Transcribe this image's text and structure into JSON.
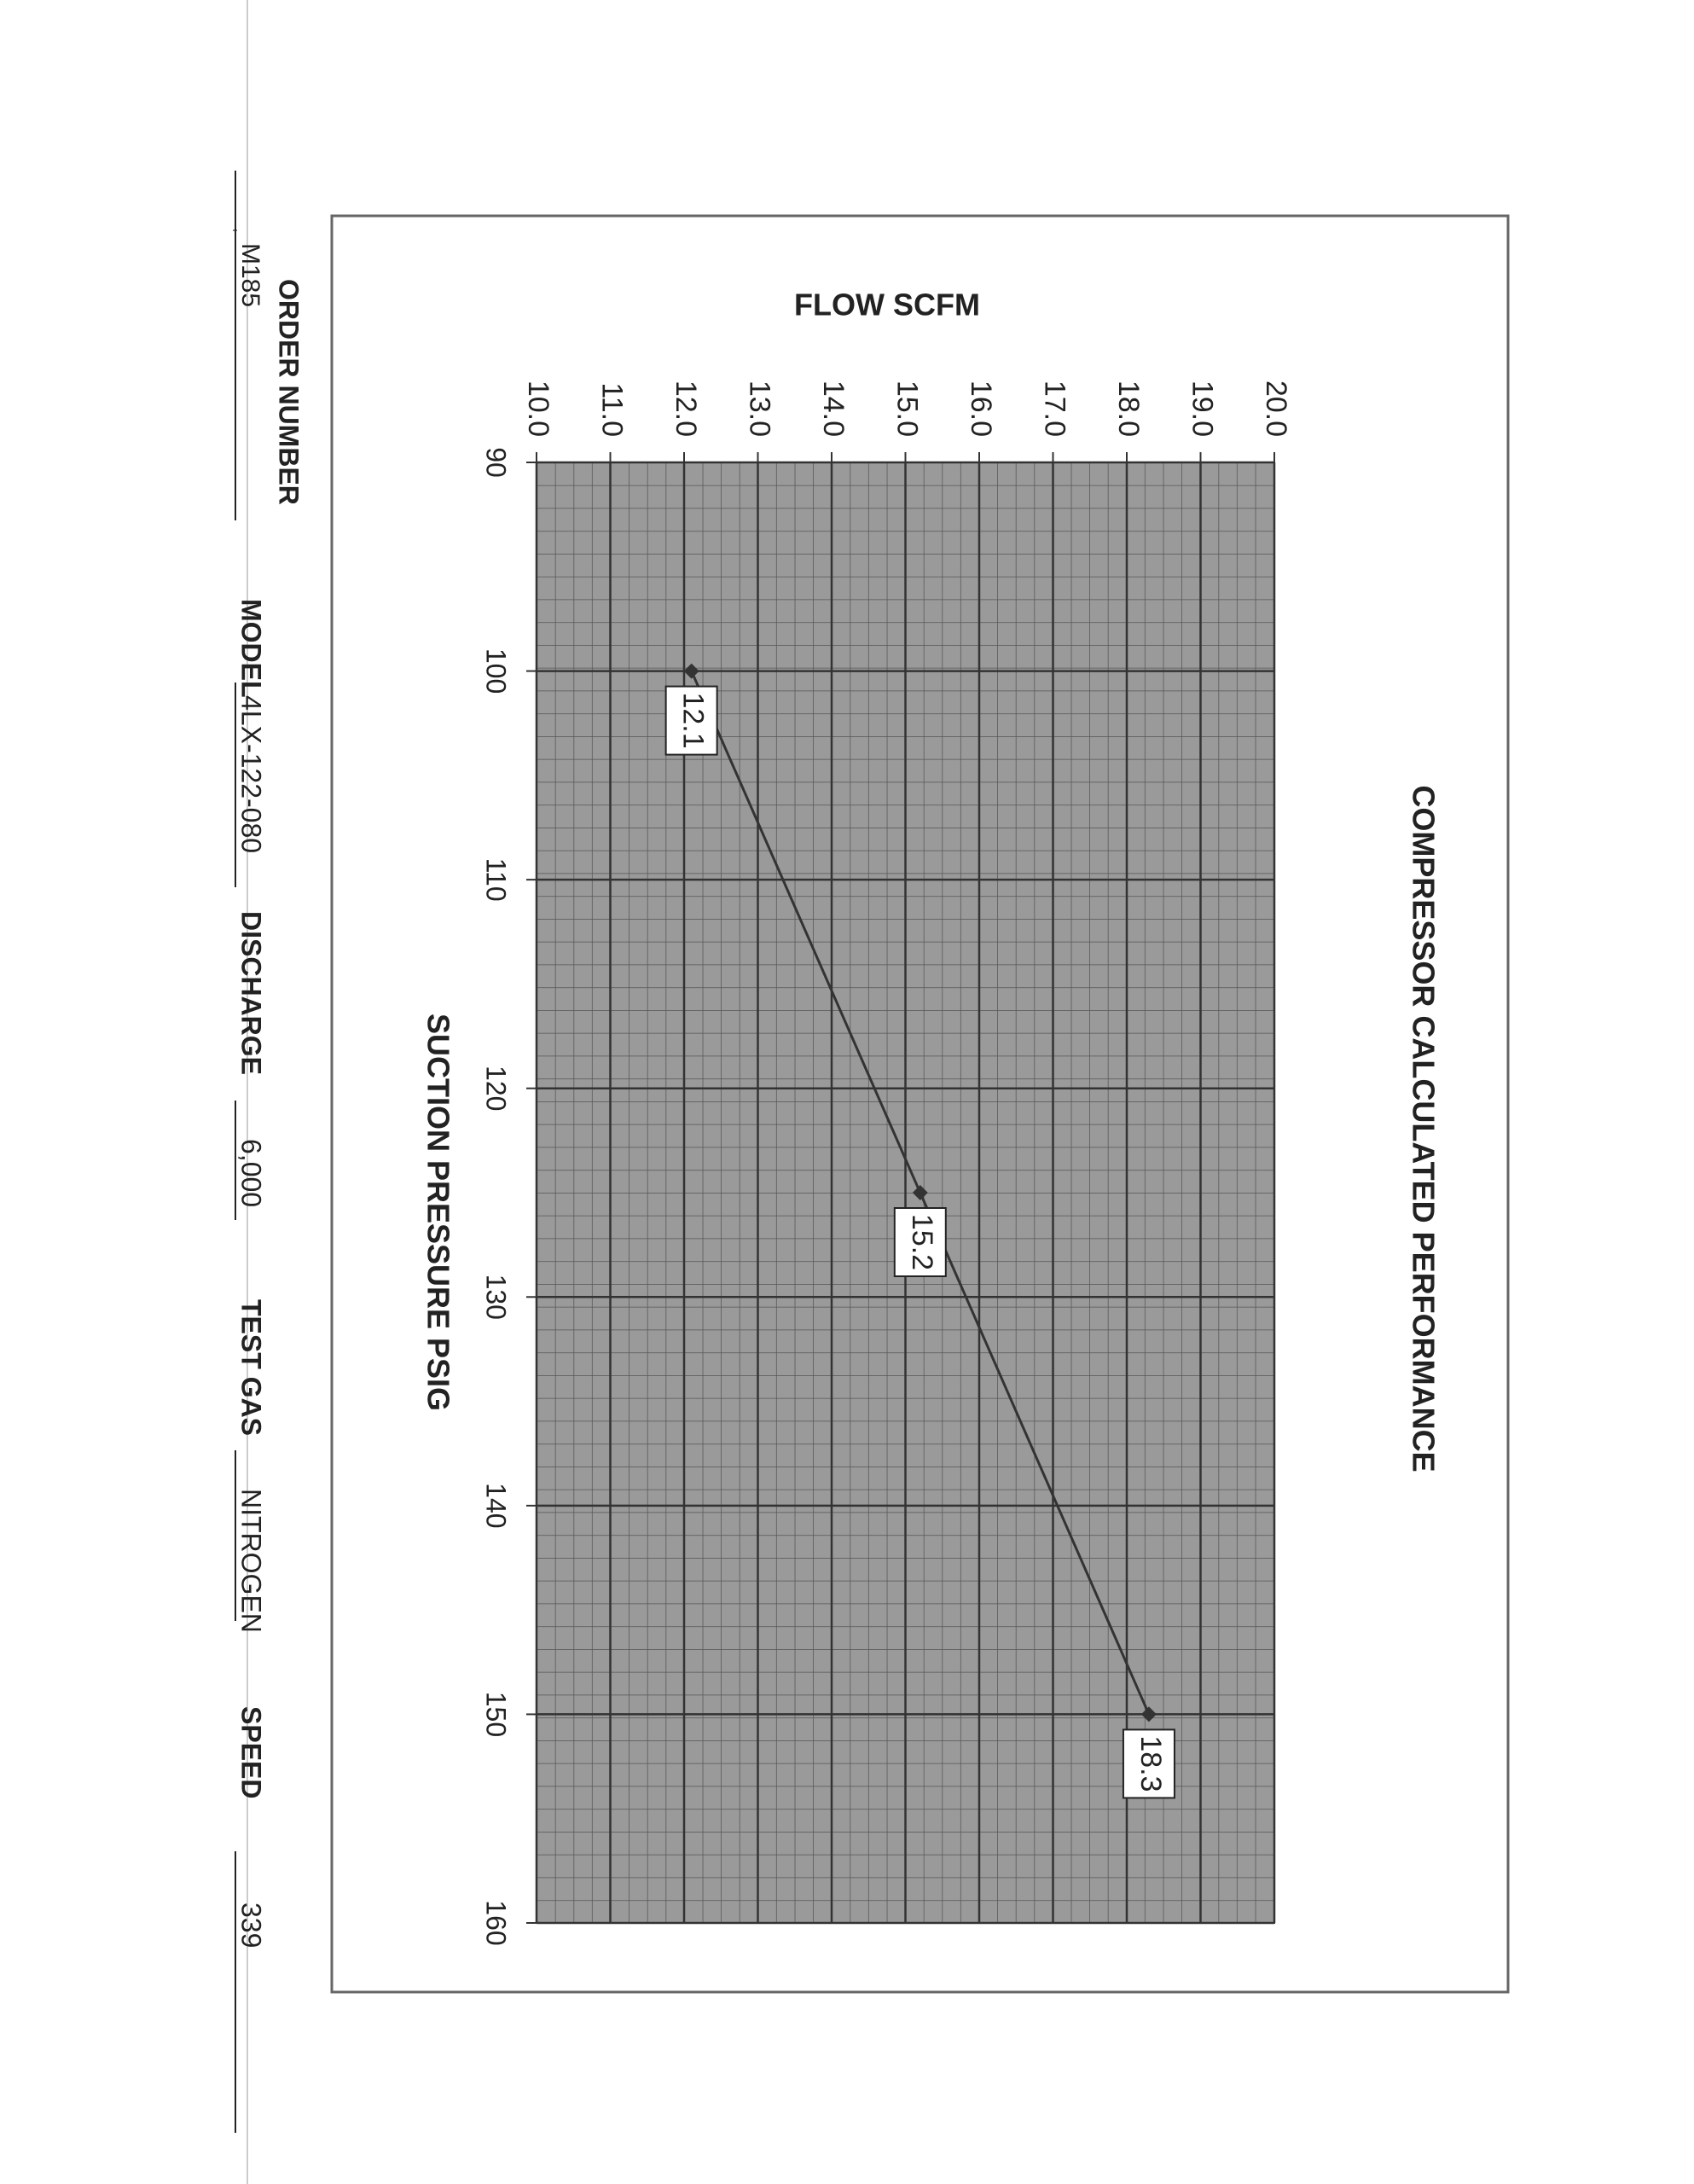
{
  "chart_data": {
    "type": "line",
    "title": "COMPRESSOR CALCULATED PERFORMANCE",
    "x_label": "SUCTION PRESSURE PSIG",
    "y_label": "FLOW SCFM",
    "x": [
      100,
      125,
      150
    ],
    "values": [
      12.1,
      15.2,
      18.3
    ],
    "color": "#333333",
    "xlim": [
      90,
      160
    ],
    "xticks": [
      90,
      100,
      110,
      120,
      130,
      140,
      150,
      160
    ],
    "ylim": [
      10,
      20
    ],
    "yticks": [
      {
        "value": 10,
        "label": "10.0"
      },
      {
        "value": 11,
        "label": "11.0"
      },
      {
        "value": 12,
        "label": "12.0"
      },
      {
        "value": 13,
        "label": "13.0"
      },
      {
        "value": 14,
        "label": "14.0"
      },
      {
        "value": 15,
        "label": "15.0"
      },
      {
        "value": 16,
        "label": "16.0"
      },
      {
        "value": 17,
        "label": "17.0"
      },
      {
        "value": 18,
        "label": "18.0"
      },
      {
        "value": 19,
        "label": "19.0"
      },
      {
        "value": 20,
        "label": "20.0"
      }
    ],
    "grid": true
  },
  "footer": {
    "order_number_label": "ORDER NUMBER",
    "order_number": "M185",
    "model_label": "MODEL",
    "model": "4LX-122-080",
    "discharge_label": "DISCHARGE",
    "discharge": "6,000",
    "test_gas_label": "TEST GAS",
    "test_gas": "NITROGEN",
    "speed_label": "SPEED",
    "speed": "339"
  }
}
